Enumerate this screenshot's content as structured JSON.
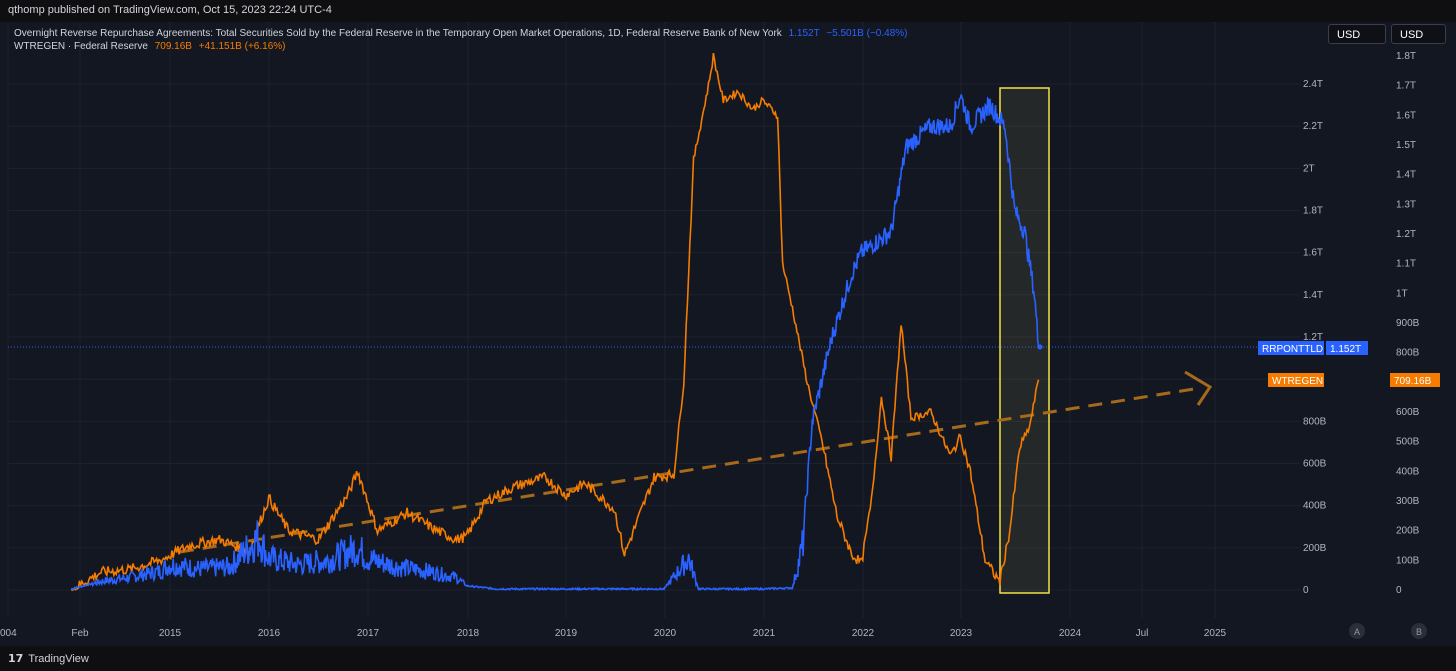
{
  "header": {
    "published": "qthomp published on TradingView.com, Oct 15, 2023 22:24 UTC-4"
  },
  "legend": {
    "rrp_name": "Overnight Reverse Repurchase Agreements: Total Securities Sold by the Federal Reserve in the Temporary Open Market Operations, 1D, Federal Reserve Bank of New York",
    "rrp_value": "1.152T",
    "rrp_change": "−5.501B (−0.48%)",
    "tga_name": "WTREGEN · Federal Reserve",
    "tga_value": "709.16B",
    "tga_change": "+41.151B (+6.16%)"
  },
  "currency_buttons": [
    "USD",
    "USD"
  ],
  "price_labels": {
    "rrp_tag": "RRPONTTLD",
    "rrp_value": "1.152T",
    "tga_tag": "WTREGEN",
    "tga_value": "709.16B"
  },
  "footer": {
    "brand": "TradingView",
    "mark": "17",
    "scale_buttons": [
      "A",
      "B"
    ]
  },
  "colors": {
    "background": "#131722",
    "rrp_line": "#2962ff",
    "tga_line": "#f57c00",
    "highlight_box": "#f5e142",
    "trend_arrow": "#a66a1a"
  },
  "chart_data": {
    "type": "line",
    "x_tick_labels": [
      "004",
      "Feb",
      "2015",
      "2016",
      "2017",
      "2018",
      "2019",
      "2020",
      "2021",
      "2022",
      "2023",
      "2024",
      "Jul",
      "2025"
    ],
    "left_axis_ticks": [
      "0",
      "200B",
      "400B",
      "600B",
      "800B",
      "1T",
      "1.2T",
      "1.4T",
      "1.6T",
      "1.8T",
      "2T",
      "2.2T",
      "2.4T"
    ],
    "right_axis_ticks": [
      "0",
      "100B",
      "200B",
      "300B",
      "400B",
      "500B",
      "600B",
      "700B",
      "800B",
      "900B",
      "1T",
      "1.1T",
      "1.2T",
      "1.3T",
      "1.4T",
      "1.5T",
      "1.6T",
      "1.7T",
      "1.8T"
    ],
    "left_axis_range": [
      0,
      2400000000000
    ],
    "right_axis_range": [
      0,
      1800000000000
    ],
    "series": [
      {
        "name": "RRPONTTLD",
        "axis": "left",
        "points": [
          [
            2014.0,
            5
          ],
          [
            2014.3,
            40
          ],
          [
            2014.6,
            60
          ],
          [
            2014.9,
            90
          ],
          [
            2015.0,
            120
          ],
          [
            2015.3,
            100
          ],
          [
            2015.6,
            110
          ],
          [
            2015.9,
            250
          ],
          [
            2016.0,
            150
          ],
          [
            2016.3,
            120
          ],
          [
            2016.6,
            140
          ],
          [
            2016.9,
            200
          ],
          [
            2017.0,
            150
          ],
          [
            2017.3,
            110
          ],
          [
            2017.6,
            90
          ],
          [
            2017.9,
            60
          ],
          [
            2018.0,
            20
          ],
          [
            2018.3,
            5
          ],
          [
            2018.6,
            5
          ],
          [
            2019.0,
            5
          ],
          [
            2019.5,
            5
          ],
          [
            2020.0,
            5
          ],
          [
            2020.25,
            150
          ],
          [
            2020.35,
            5
          ],
          [
            2021.0,
            5
          ],
          [
            2021.3,
            10
          ],
          [
            2021.4,
            200
          ],
          [
            2021.5,
            800
          ],
          [
            2021.7,
            1200
          ],
          [
            2021.9,
            1500
          ],
          [
            2022.0,
            1600
          ],
          [
            2022.3,
            1700
          ],
          [
            2022.45,
            2100
          ],
          [
            2022.7,
            2200
          ],
          [
            2022.9,
            2200
          ],
          [
            2023.0,
            2350
          ],
          [
            2023.1,
            2200
          ],
          [
            2023.3,
            2300
          ],
          [
            2023.45,
            2200
          ],
          [
            2023.55,
            1800
          ],
          [
            2023.65,
            1700
          ],
          [
            2023.75,
            1400
          ],
          [
            2023.79,
            1152
          ]
        ]
      },
      {
        "name": "WTREGEN",
        "axis": "right",
        "points": [
          [
            2014.0,
            0
          ],
          [
            2014.3,
            60
          ],
          [
            2014.6,
            70
          ],
          [
            2014.9,
            100
          ],
          [
            2015.2,
            150
          ],
          [
            2015.5,
            170
          ],
          [
            2015.8,
            130
          ],
          [
            2016.0,
            310
          ],
          [
            2016.2,
            200
          ],
          [
            2016.5,
            170
          ],
          [
            2016.8,
            320
          ],
          [
            2016.9,
            400
          ],
          [
            2017.1,
            200
          ],
          [
            2017.4,
            260
          ],
          [
            2017.7,
            200
          ],
          [
            2017.9,
            170
          ],
          [
            2018.0,
            180
          ],
          [
            2018.2,
            300
          ],
          [
            2018.5,
            350
          ],
          [
            2018.8,
            380
          ],
          [
            2019.0,
            320
          ],
          [
            2019.2,
            360
          ],
          [
            2019.5,
            270
          ],
          [
            2019.6,
            120
          ],
          [
            2019.9,
            380
          ],
          [
            2020.1,
            390
          ],
          [
            2020.2,
            700
          ],
          [
            2020.3,
            1450
          ],
          [
            2020.45,
            1700
          ],
          [
            2020.5,
            1800
          ],
          [
            2020.6,
            1650
          ],
          [
            2020.75,
            1680
          ],
          [
            2020.9,
            1620
          ],
          [
            2021.0,
            1650
          ],
          [
            2021.15,
            1600
          ],
          [
            2021.2,
            1100
          ],
          [
            2021.3,
            950
          ],
          [
            2021.45,
            700
          ],
          [
            2021.6,
            500
          ],
          [
            2021.75,
            250
          ],
          [
            2021.9,
            120
          ],
          [
            2022.0,
            90
          ],
          [
            2022.1,
            300
          ],
          [
            2022.2,
            650
          ],
          [
            2022.3,
            450
          ],
          [
            2022.4,
            900
          ],
          [
            2022.5,
            580
          ],
          [
            2022.7,
            600
          ],
          [
            2022.9,
            450
          ],
          [
            2023.0,
            520
          ],
          [
            2023.1,
            400
          ],
          [
            2023.25,
            100
          ],
          [
            2023.35,
            50
          ],
          [
            2023.4,
            30
          ],
          [
            2023.5,
            200
          ],
          [
            2023.6,
            480
          ],
          [
            2023.7,
            550
          ],
          [
            2023.79,
            709
          ]
        ]
      }
    ],
    "annotations": {
      "trend_arrow": "dashed orange arrow rising from 2014 to 2025",
      "highlight_box": "yellow rectangle spanning mid-2023 to late 2023"
    }
  }
}
